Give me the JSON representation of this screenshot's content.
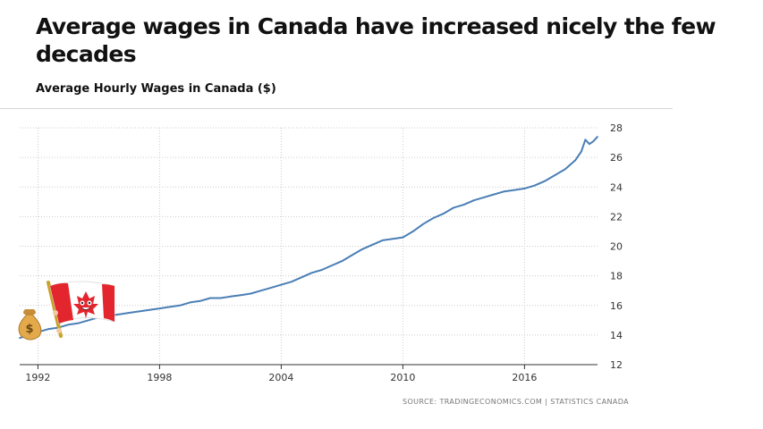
{
  "headline": "Average wages in Canada have increased nicely the few decades",
  "source": "SOURCE:  TRADINGECONOMICS.COM  |  STATISTICS  CANADA",
  "mascot_icon": "money-bag-canada-flag-icon",
  "colors": {
    "line": "#4a7fb5",
    "grid": "#cccccc",
    "axis": "#333333"
  },
  "chart_data": {
    "type": "line",
    "title": "Average Hourly Wages in Canada ($)",
    "xlabel": "",
    "ylabel": "",
    "xlim": [
      1991.1,
      2019.6
    ],
    "ylim": [
      12,
      28
    ],
    "x_ticks": [
      1992,
      1998,
      2004,
      2010,
      2016
    ],
    "x_tick_labels": [
      "1992",
      "1998",
      "2004",
      "2010",
      "2016"
    ],
    "y_ticks": [
      12,
      14,
      16,
      18,
      20,
      22,
      24,
      26,
      28
    ],
    "y_tick_labels": [
      "12",
      "14",
      "16",
      "18",
      "20",
      "22",
      "24",
      "26",
      "28"
    ],
    "grid": true,
    "legend": "none",
    "series": [
      {
        "x": [
          1991.1,
          1991.5,
          1992,
          1992.5,
          1993,
          1993.5,
          1994,
          1994.5,
          1995,
          1995.5,
          1996,
          1996.5,
          1997,
          1997.5,
          1998,
          1998.5,
          1999,
          1999.5,
          2000,
          2000.5,
          2001,
          2001.5,
          2002,
          2002.5,
          2003,
          2003.5,
          2004,
          2004.5,
          2005,
          2005.5,
          2006,
          2006.5,
          2007,
          2007.5,
          2008,
          2008.5,
          2009,
          2009.5,
          2010,
          2010.5,
          2011,
          2011.5,
          2012,
          2012.5,
          2013,
          2013.5,
          2014,
          2014.5,
          2015,
          2015.5,
          2016,
          2016.5,
          2017,
          2017.5,
          2018,
          2018.5,
          2018.8,
          2019,
          2019.2,
          2019.4,
          2019.6
        ],
        "values": [
          13.8,
          14.0,
          14.2,
          14.4,
          14.5,
          14.7,
          14.8,
          15.0,
          15.2,
          15.3,
          15.4,
          15.5,
          15.6,
          15.7,
          15.8,
          15.9,
          16.0,
          16.2,
          16.3,
          16.5,
          16.5,
          16.6,
          16.7,
          16.8,
          17.0,
          17.2,
          17.4,
          17.6,
          17.9,
          18.2,
          18.4,
          18.7,
          19.0,
          19.4,
          19.8,
          20.1,
          20.4,
          20.5,
          20.6,
          21.0,
          21.5,
          21.9,
          22.2,
          22.6,
          22.8,
          23.1,
          23.3,
          23.5,
          23.7,
          23.8,
          23.9,
          24.1,
          24.4,
          24.8,
          25.2,
          25.8,
          26.4,
          27.2,
          26.9,
          27.1,
          27.4
        ]
      }
    ]
  }
}
